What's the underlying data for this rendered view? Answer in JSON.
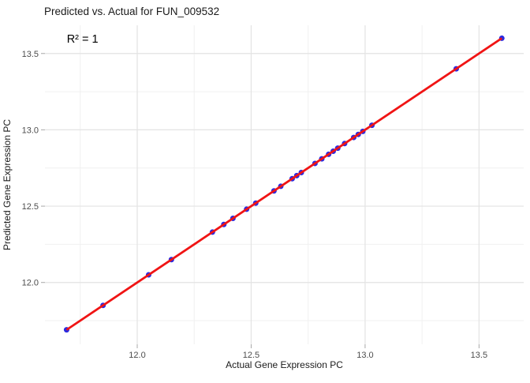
{
  "chart_data": {
    "type": "scatter",
    "title": "Predicted vs. Actual for FUN_009532",
    "xlabel": "Actual Gene Expression PC",
    "ylabel": "Predicted Gene Expression PC",
    "annotation": {
      "text": "R² = 1",
      "x": 11.76,
      "y": 13.59
    },
    "xlim": [
      11.595,
      13.696
    ],
    "ylim": [
      11.595,
      13.685
    ],
    "x_ticks": {
      "values": [
        12.0,
        12.5,
        13.0,
        13.5
      ],
      "labels": [
        "12.0",
        "12.5",
        "13.0",
        "13.5"
      ]
    },
    "y_ticks": {
      "values": [
        12.0,
        12.5,
        13.0,
        13.5
      ],
      "labels": [
        "12.0",
        "12.5",
        "13.0",
        "13.5"
      ]
    },
    "x_minor_ticks": [
      11.75,
      12.25,
      12.75,
      13.25
    ],
    "y_minor_ticks": [
      11.75,
      12.25,
      12.75,
      13.25
    ],
    "grid": true,
    "legend": "none",
    "colors": {
      "point": "#2a2ae0",
      "line": "#f01414",
      "grid_major": "#e3e3e3",
      "grid_minor": "#f0f0f0",
      "tick_mark": "#a8a8a8",
      "tick_label": "#4d4d4d"
    },
    "series": [
      {
        "name": "observations",
        "type": "scatter",
        "points": [
          [
            11.69,
            11.69
          ],
          [
            11.85,
            11.85
          ],
          [
            12.05,
            12.05
          ],
          [
            12.15,
            12.15
          ],
          [
            12.33,
            12.33
          ],
          [
            12.38,
            12.38
          ],
          [
            12.42,
            12.42
          ],
          [
            12.48,
            12.48
          ],
          [
            12.52,
            12.52
          ],
          [
            12.6,
            12.6
          ],
          [
            12.63,
            12.63
          ],
          [
            12.68,
            12.68
          ],
          [
            12.7,
            12.7
          ],
          [
            12.72,
            12.72
          ],
          [
            12.78,
            12.78
          ],
          [
            12.81,
            12.81
          ],
          [
            12.84,
            12.84
          ],
          [
            12.86,
            12.86
          ],
          [
            12.88,
            12.88
          ],
          [
            12.91,
            12.91
          ],
          [
            12.95,
            12.95
          ],
          [
            12.97,
            12.97
          ],
          [
            12.99,
            12.99
          ],
          [
            13.03,
            13.03
          ],
          [
            13.4,
            13.4
          ],
          [
            13.6,
            13.6
          ]
        ]
      },
      {
        "name": "regression-line",
        "type": "line",
        "x": [
          11.69,
          13.6
        ],
        "y": [
          11.69,
          13.6
        ]
      }
    ]
  }
}
